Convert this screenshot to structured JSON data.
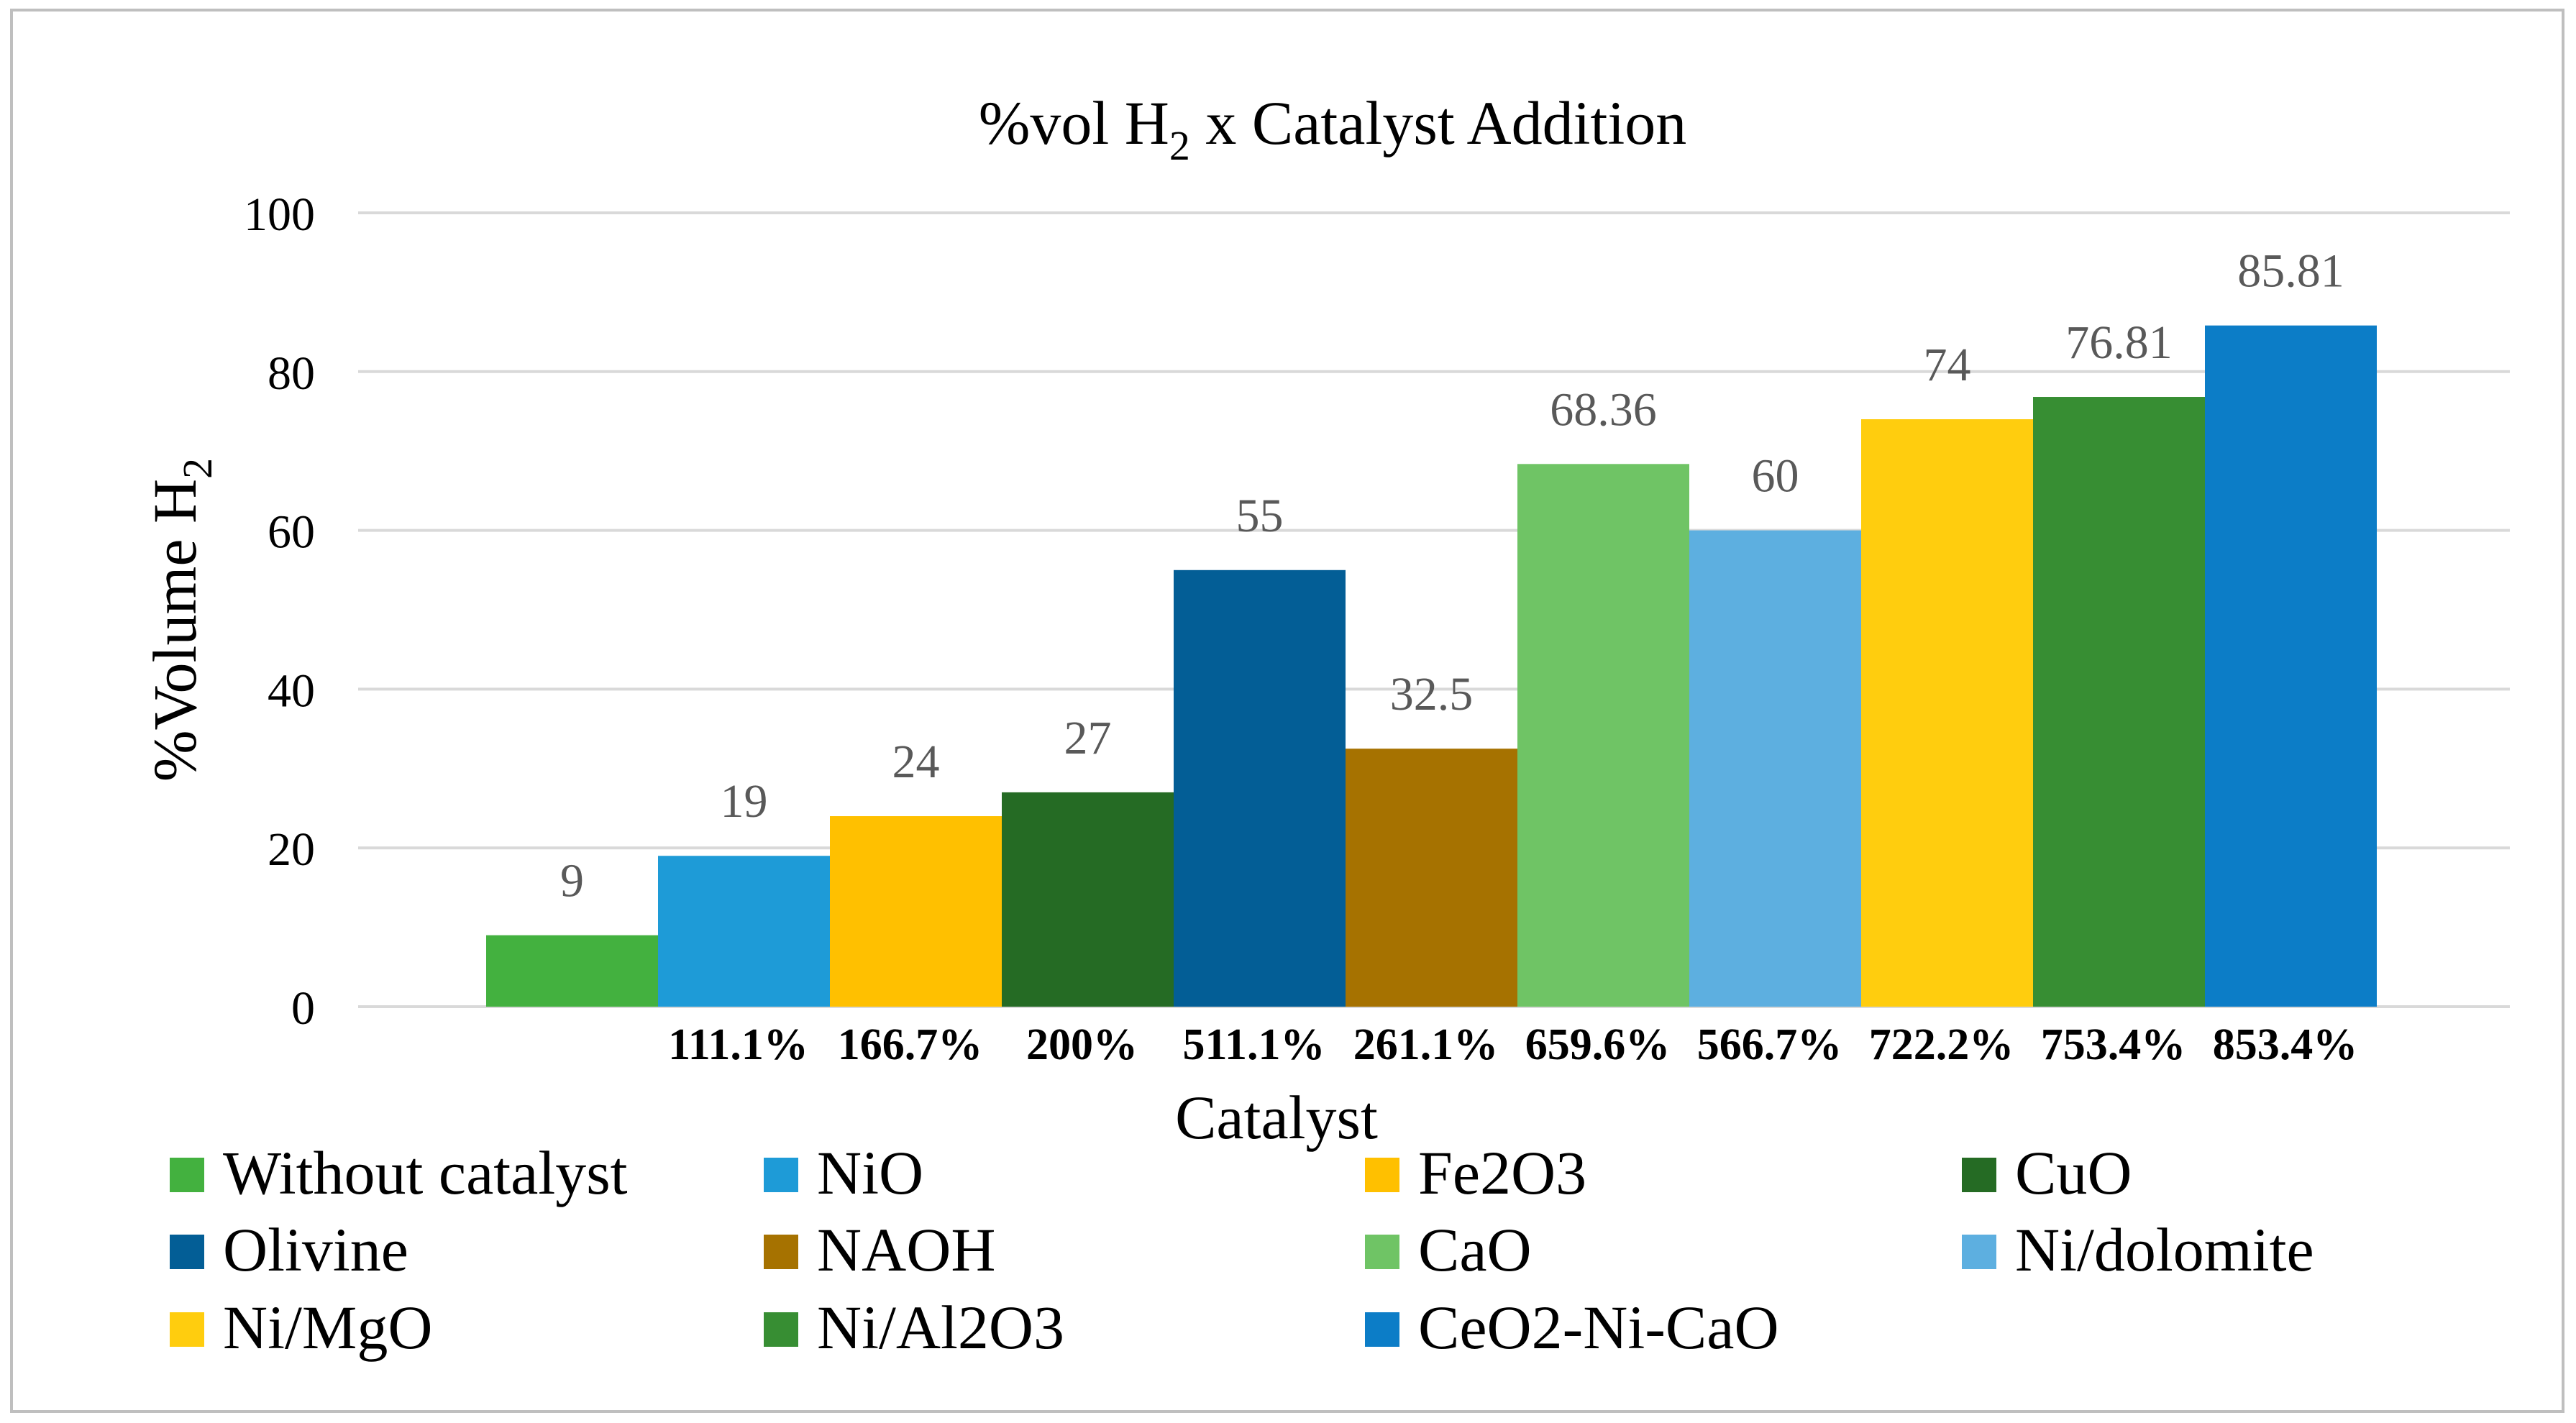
{
  "chart_data": {
    "type": "bar",
    "title": {
      "prefix": "%vol H",
      "subscript": "2",
      "suffix": " x Catalyst Addition"
    },
    "xlabel": "Catalyst",
    "ylabel": {
      "prefix": "%Volume H",
      "subscript": "2"
    },
    "ylim": [
      0,
      100
    ],
    "yticks": [
      0,
      20,
      40,
      60,
      80,
      100
    ],
    "grid": true,
    "legend_position": "bottom",
    "categories": [
      "Without catalyst",
      "NiO",
      "Fe2O3",
      "CuO",
      "Olivine",
      "NAOH",
      "CaO",
      "Ni/dolomite",
      "Ni/MgO",
      "Ni/Al2O3",
      "CeO2-Ni-CaO"
    ],
    "values": [
      9,
      19,
      24,
      27,
      55,
      32.5,
      68.36,
      60,
      74,
      76.81,
      85.81
    ],
    "data_labels": [
      "9",
      "19",
      "24",
      "27",
      "55",
      "32.5",
      "68.36",
      "60",
      "74",
      "76.81",
      "85.81"
    ],
    "increase_labels": [
      "",
      "111.1%",
      "166.7%",
      "200%",
      "511.1%",
      "261.1%",
      "659.6%",
      "566.7%",
      "722.2%",
      "753.4%",
      "853.4%"
    ],
    "colors": [
      "#43b13f",
      "#1e9bd7",
      "#ffc000",
      "#256b24",
      "#035e96",
      "#a67200",
      "#6fc465",
      "#5dafe0",
      "#ffcd0e",
      "#378e33",
      "#0c7dc7"
    ]
  }
}
